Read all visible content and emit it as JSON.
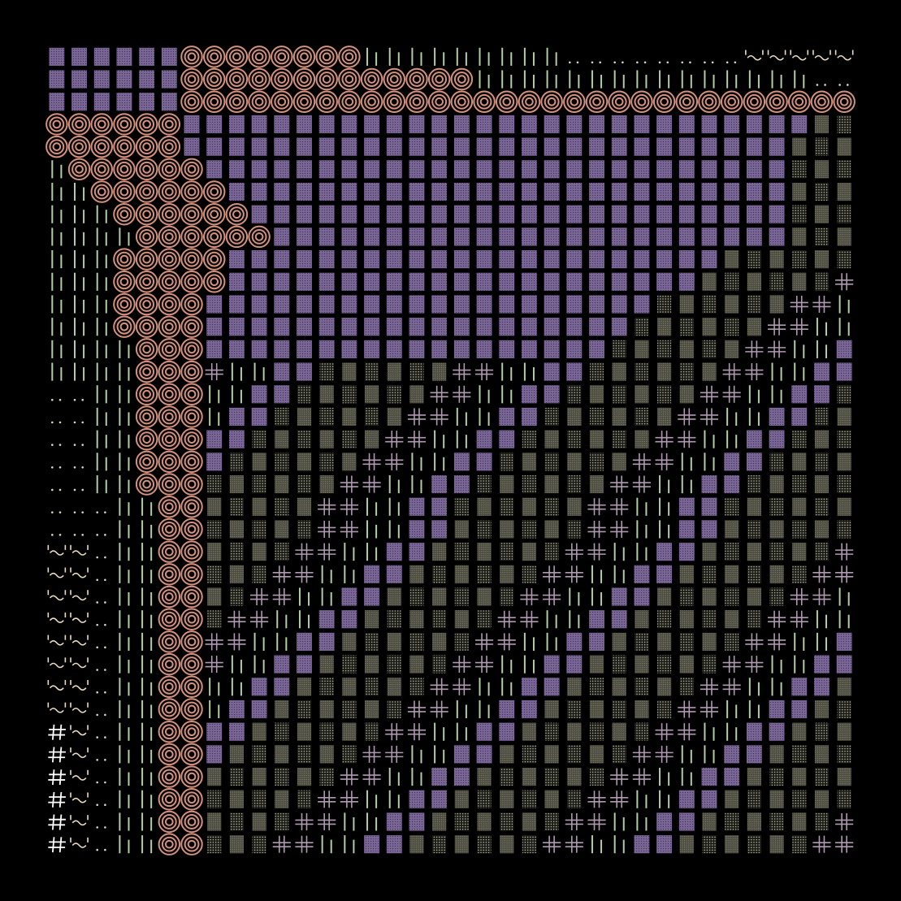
{
  "artwork": {
    "kind": "ascii-glyph mosaic",
    "background": "#000000",
    "palette": {
      "ring": "#d4917c",
      "block": "#7a6696",
      "block_dots": "#3f3352",
      "tile_dark": "#1b1b17",
      "tile_mid": "#4a4a40",
      "dots_pale": "#d8d8bc",
      "cross": "#b09ab2",
      "bar": "#b3cca4",
      "tilde_text": "#eadcc2",
      "hash_text": "#ffffff"
    },
    "glyph_types": [
      "ring-icon",
      "dotted-block",
      "stipple-tile",
      "cross-glyph",
      "double-bar",
      "tilde-glyph",
      "hash-glyph",
      "dot-pair"
    ],
    "columns": 36,
    "rows": 36
  }
}
